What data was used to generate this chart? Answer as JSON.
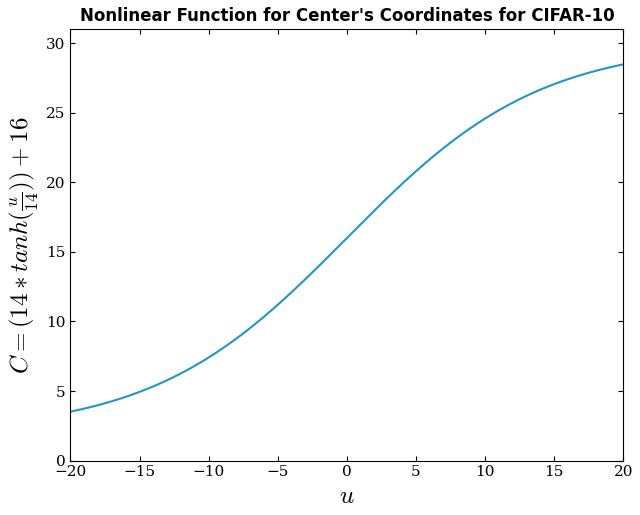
{
  "title": "Nonlinear Function for Center's Coordinates for CIFAR-10",
  "xlabel": "$u$",
  "ylabel": "$C = (14 * tanh(\\frac{u}{14})) + 16$",
  "x_min": -20,
  "x_max": 20,
  "y_min": 0,
  "y_max": 31,
  "x_ticks": [
    -20,
    -15,
    -10,
    -5,
    0,
    5,
    10,
    15,
    20
  ],
  "y_ticks": [
    0,
    5,
    10,
    15,
    20,
    25,
    30
  ],
  "line_color": "#2196c8",
  "line_width": 1.5,
  "title_fontsize": 12,
  "label_fontsize": 18,
  "tick_fontsize": 11,
  "background_color": "#ffffff"
}
